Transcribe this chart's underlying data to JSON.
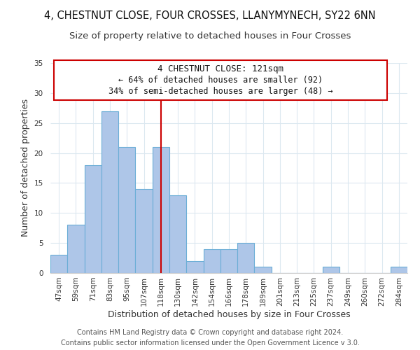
{
  "title": "4, CHESTNUT CLOSE, FOUR CROSSES, LLANYMYNECH, SY22 6NN",
  "subtitle": "Size of property relative to detached houses in Four Crosses",
  "xlabel": "Distribution of detached houses by size in Four Crosses",
  "ylabel": "Number of detached properties",
  "bin_labels": [
    "47sqm",
    "59sqm",
    "71sqm",
    "83sqm",
    "95sqm",
    "107sqm",
    "118sqm",
    "130sqm",
    "142sqm",
    "154sqm",
    "166sqm",
    "178sqm",
    "189sqm",
    "201sqm",
    "213sqm",
    "225sqm",
    "237sqm",
    "249sqm",
    "260sqm",
    "272sqm",
    "284sqm"
  ],
  "bar_heights": [
    3,
    8,
    18,
    27,
    21,
    14,
    21,
    13,
    2,
    4,
    4,
    5,
    1,
    0,
    0,
    0,
    1,
    0,
    0,
    0,
    1
  ],
  "bar_color": "#aec6e8",
  "bar_edge_color": "#6baed6",
  "vline_x_index": 6,
  "vline_color": "#cc0000",
  "ylim": [
    0,
    35
  ],
  "yticks": [
    0,
    5,
    10,
    15,
    20,
    25,
    30,
    35
  ],
  "annotation_title": "4 CHESTNUT CLOSE: 121sqm",
  "annotation_line1": "← 64% of detached houses are smaller (92)",
  "annotation_line2": "34% of semi-detached houses are larger (48) →",
  "footer1": "Contains HM Land Registry data © Crown copyright and database right 2024.",
  "footer2": "Contains public sector information licensed under the Open Government Licence v 3.0.",
  "background_color": "#ffffff",
  "grid_color": "#dce8f0",
  "title_fontsize": 10.5,
  "subtitle_fontsize": 9.5,
  "xlabel_fontsize": 9,
  "ylabel_fontsize": 9,
  "tick_fontsize": 7.5,
  "annotation_fontsize": 9,
  "footer_fontsize": 7
}
